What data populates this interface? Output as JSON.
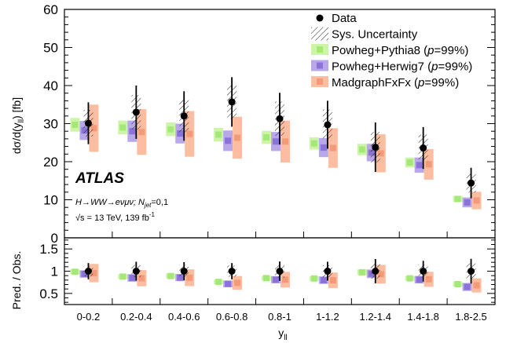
{
  "chart_data": {
    "type": "bar",
    "experiment": "ATLAS",
    "process_label": "H→WW→eνμν; N",
    "process_sub": "jet",
    "process_suffix": "=0,1",
    "energy_label": "√s = 13 TeV, 139 fb",
    "energy_sup": "-1",
    "ylabel": "dσ/d(y",
    "ylabel_sub": "ll",
    "ylabel_suffix": ") [fb]",
    "xlabel": "y",
    "xlabel_sub": "ll",
    "ratio_ylabel": "Pred. / Obs.",
    "ylim": [
      0,
      60
    ],
    "yticks": [
      0,
      10,
      20,
      30,
      40,
      50,
      60
    ],
    "ratio_ylim": [
      0.25,
      1.75
    ],
    "ratio_yticks": [
      "0.5",
      "1",
      "1.5"
    ],
    "ratio_ytick_values": [
      0.5,
      1.0,
      1.5
    ],
    "categories": [
      "0-0.2",
      "0.2-0.4",
      "0.4-0.6",
      "0.6-0.8",
      "0.8-1",
      "1-1.2",
      "1.2-1.4",
      "1.4-1.8",
      "1.8-2.5"
    ],
    "data": {
      "name": "Data",
      "values": [
        30.1,
        33.0,
        32.0,
        35.7,
        31.3,
        29.7,
        23.8,
        23.6,
        14.4
      ],
      "err_total": [
        5.5,
        7.0,
        6.5,
        6.5,
        6.8,
        6.3,
        6.5,
        5.5,
        4.0
      ],
      "err_sys": [
        3.5,
        4.5,
        4.5,
        4.5,
        4.5,
        4.0,
        4.0,
        3.5,
        2.5
      ],
      "sys_label": "Sys. Uncertainty"
    },
    "series": [
      {
        "name": "Powheg+Pythia8",
        "p_value": "99%",
        "values": [
          29.7,
          29.0,
          28.5,
          27.1,
          26.4,
          24.8,
          23.2,
          19.8,
          10.2
        ],
        "unc": [
          1.8,
          1.8,
          1.8,
          1.8,
          1.7,
          1.6,
          1.5,
          1.3,
          0.8
        ],
        "color": "#ccf5a8",
        "marker": "#a6e878"
      },
      {
        "name": "Powheg+Herwig7",
        "p_value": "99%",
        "values": [
          28.2,
          28.0,
          27.4,
          25.5,
          25.3,
          23.7,
          22.4,
          19.1,
          9.3
        ],
        "unc": [
          2.5,
          2.8,
          2.6,
          2.7,
          2.5,
          2.5,
          2.3,
          2.0,
          1.3
        ],
        "color": "#b8a8ea",
        "marker": "#8a72d8"
      },
      {
        "name": "MadgraphFxFx",
        "p_value": "99%",
        "values": [
          28.8,
          27.8,
          27.3,
          26.3,
          25.3,
          23.6,
          22.2,
          19.3,
          9.8
        ],
        "unc": [
          6.2,
          6.0,
          6.0,
          5.5,
          5.5,
          5.2,
          5.0,
          4.0,
          2.3
        ],
        "color": "#fcbda0",
        "marker": "#f49a78"
      }
    ],
    "legend_p_prefix": "(",
    "legend_p_symbol": "p",
    "legend_p_eq": "=",
    "legend_p_suffix": ")",
    "legend_position": "top-right",
    "grid": false
  }
}
